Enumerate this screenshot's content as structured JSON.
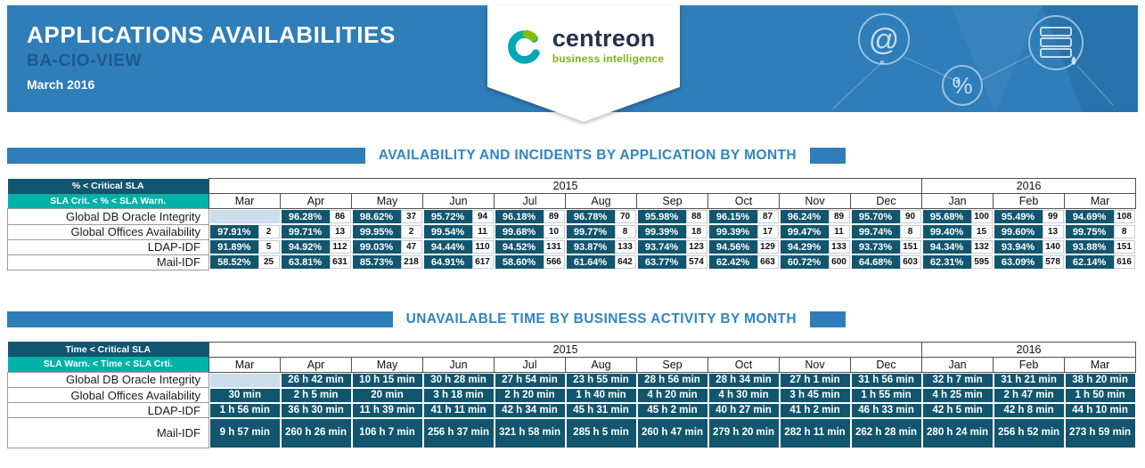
{
  "header": {
    "title": "APPLICATIONS AVAILABILITIES",
    "subtitle": "BA-CIO-VIEW",
    "period": "March 2016",
    "logo": {
      "name": "centreon",
      "tagline": "business intelligence"
    },
    "decor_icons": [
      {
        "name": "at-icon",
        "glyph": "@"
      },
      {
        "name": "percent-icon",
        "glyph": "%"
      },
      {
        "name": "server-icon",
        "glyph": ""
      }
    ]
  },
  "colors": {
    "banner_blue": "#2f7db9",
    "accent_blue": "#2e86c3",
    "subtitle_blue": "#1b5a90",
    "cell_dark": "#11566e",
    "cell_teal": "#00b2a8",
    "cell_empty": "#ccddec",
    "logo_teal": "#00a9b5",
    "logo_green": "#84bd00",
    "tagline_green": "#7ab41d"
  },
  "sections": {
    "availability": {
      "title": "AVAILABILITY AND INCIDENTS BY APPLICATION BY MONTH"
    },
    "unavailable": {
      "title": "UNAVAILABLE TIME BY BUSINESS ACTIVITY BY MONTH"
    }
  },
  "availability_table": {
    "legend": {
      "critical": "% < Critical SLA",
      "warning": "SLA Crit. < % < SLA Warn."
    },
    "year_groups": [
      {
        "label": "2015",
        "span": 10
      },
      {
        "label": "2016",
        "span": 3
      }
    ],
    "months": [
      "Mar",
      "Apr",
      "May",
      "Jun",
      "Jul",
      "Aug",
      "Sep",
      "Oct",
      "Nov",
      "Dec",
      "Jan",
      "Feb",
      "Mar"
    ],
    "rows": [
      {
        "label": "Global DB Oracle Integrity",
        "cells": [
          null,
          {
            "pct": "96.28%",
            "count": "86"
          },
          {
            "pct": "98.62%",
            "count": "37"
          },
          {
            "pct": "95.72%",
            "count": "94"
          },
          {
            "pct": "96.18%",
            "count": "89"
          },
          {
            "pct": "96.78%",
            "count": "70"
          },
          {
            "pct": "95.98%",
            "count": "88"
          },
          {
            "pct": "96.15%",
            "count": "87"
          },
          {
            "pct": "96.24%",
            "count": "89"
          },
          {
            "pct": "95.70%",
            "count": "90"
          },
          {
            "pct": "95.68%",
            "count": "100"
          },
          {
            "pct": "95.49%",
            "count": "99"
          },
          {
            "pct": "94.69%",
            "count": "108"
          }
        ]
      },
      {
        "label": "Global Offices Availability",
        "cells": [
          {
            "pct": "97.91%",
            "count": "2"
          },
          {
            "pct": "99.71%",
            "count": "13"
          },
          {
            "pct": "99.95%",
            "count": "2"
          },
          {
            "pct": "99.54%",
            "count": "11"
          },
          {
            "pct": "99.68%",
            "count": "10"
          },
          {
            "pct": "99.77%",
            "count": "8"
          },
          {
            "pct": "99.39%",
            "count": "18"
          },
          {
            "pct": "99.39%",
            "count": "17"
          },
          {
            "pct": "99.47%",
            "count": "11"
          },
          {
            "pct": "99.74%",
            "count": "8"
          },
          {
            "pct": "99.40%",
            "count": "15"
          },
          {
            "pct": "99.60%",
            "count": "13"
          },
          {
            "pct": "99.75%",
            "count": "8"
          }
        ]
      },
      {
        "label": "LDAP-IDF",
        "cells": [
          {
            "pct": "91.89%",
            "count": "5"
          },
          {
            "pct": "94.92%",
            "count": "112"
          },
          {
            "pct": "99.03%",
            "count": "47"
          },
          {
            "pct": "94.44%",
            "count": "110"
          },
          {
            "pct": "94.52%",
            "count": "131"
          },
          {
            "pct": "93.87%",
            "count": "133"
          },
          {
            "pct": "93.74%",
            "count": "123"
          },
          {
            "pct": "94.56%",
            "count": "129"
          },
          {
            "pct": "94.29%",
            "count": "133"
          },
          {
            "pct": "93.73%",
            "count": "151"
          },
          {
            "pct": "94.34%",
            "count": "132"
          },
          {
            "pct": "93.94%",
            "count": "140"
          },
          {
            "pct": "93.88%",
            "count": "151"
          }
        ]
      },
      {
        "label": "Mail-IDF",
        "cells": [
          {
            "pct": "58.52%",
            "count": "25"
          },
          {
            "pct": "63.81%",
            "count": "631"
          },
          {
            "pct": "85.73%",
            "count": "218"
          },
          {
            "pct": "64.91%",
            "count": "617"
          },
          {
            "pct": "58.60%",
            "count": "566"
          },
          {
            "pct": "61.64%",
            "count": "642"
          },
          {
            "pct": "63.77%",
            "count": "574"
          },
          {
            "pct": "62.42%",
            "count": "663"
          },
          {
            "pct": "60.72%",
            "count": "600"
          },
          {
            "pct": "64.68%",
            "count": "603"
          },
          {
            "pct": "62.31%",
            "count": "595"
          },
          {
            "pct": "63.09%",
            "count": "578"
          },
          {
            "pct": "62.14%",
            "count": "616"
          }
        ]
      }
    ]
  },
  "unavailable_table": {
    "legend": {
      "critical": "Time < Critical SLA",
      "warning": "SLA Warn. < Time < SLA Crti."
    },
    "year_groups": [
      {
        "label": "2015",
        "span": 10
      },
      {
        "label": "2016",
        "span": 3
      }
    ],
    "months": [
      "Mar",
      "Apr",
      "May",
      "Jun",
      "Jul",
      "Aug",
      "Sep",
      "Oct",
      "Nov",
      "Dec",
      "Jan",
      "Feb",
      "Mar"
    ],
    "rows": [
      {
        "label": "Global DB Oracle Integrity",
        "cells": [
          null,
          "26 h 42 min",
          "10 h 15 min",
          "30 h 28 min",
          "27 h 54 min",
          "23 h 55 min",
          "28 h 56 min",
          "28 h 34 min",
          "27 h 1 min",
          "31 h 56 min",
          "32 h 7 min",
          "31 h 21 min",
          "38 h 20 min"
        ]
      },
      {
        "label": "Global Offices Availability",
        "cells": [
          "30 min",
          "2 h 5 min",
          "20 min",
          "3 h 18 min",
          "2 h 20 min",
          "1 h 40 min",
          "4 h 20 min",
          "4 h 30 min",
          "3 h 45 min",
          "1 h 55 min",
          "4 h 25 min",
          "2 h 47 min",
          "1 h 50 min"
        ]
      },
      {
        "label": "LDAP-IDF",
        "cells": [
          "1 h 56 min",
          "36 h 30 min",
          "11 h 39 min",
          "41 h 11 min",
          "42 h 34 min",
          "45 h 31 min",
          "45 h 2 min",
          "40 h 27 min",
          "41 h 2 min",
          "46 h 33 min",
          "42 h 5 min",
          "42 h 8 min",
          "44 h 10 min"
        ]
      },
      {
        "label": "Mail-IDF",
        "cells": [
          "9 h 57 min",
          "260 h 26 min",
          "106 h 7 min",
          "256 h 37 min",
          "321 h 58 min",
          "285 h 5 min",
          "260 h 47 min",
          "279 h 20 min",
          "282 h 11 min",
          "262 h 28 min",
          "280 h 24 min",
          "256 h 52 min",
          "273 h 59 min"
        ]
      }
    ]
  }
}
